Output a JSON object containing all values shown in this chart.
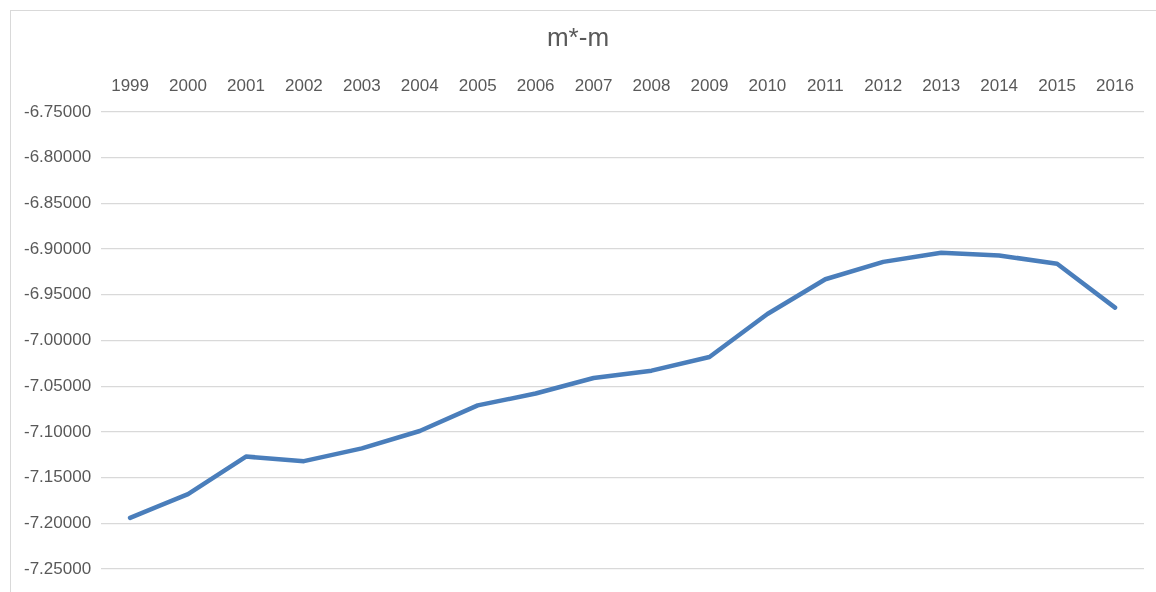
{
  "chart_data": {
    "type": "line",
    "title": "m*-m",
    "categories": [
      "1999",
      "2000",
      "2001",
      "2002",
      "2003",
      "2004",
      "2005",
      "2006",
      "2007",
      "2008",
      "2009",
      "2010",
      "2011",
      "2012",
      "2013",
      "2014",
      "2015",
      "2016"
    ],
    "series": [
      {
        "color": "#4a7ebb",
        "values": [
          -7.194,
          -7.168,
          -7.127,
          -7.132,
          -7.118,
          -7.099,
          -7.071,
          -7.058,
          -7.041,
          -7.033,
          -7.018,
          -6.971,
          -6.933,
          -6.914,
          -6.904,
          -6.907,
          -6.916,
          -6.964
        ]
      }
    ],
    "ylim": [
      -7.25,
      -6.75
    ],
    "yticks": [
      {
        "value": -7.25,
        "label": "-7.25000"
      },
      {
        "value": -7.2,
        "label": "-7.20000"
      },
      {
        "value": -7.15,
        "label": "-7.15000"
      },
      {
        "value": -7.1,
        "label": "-7.10000"
      },
      {
        "value": -7.05,
        "label": "-7.05000"
      },
      {
        "value": -7.0,
        "label": "-7.00000"
      },
      {
        "value": -6.95,
        "label": "-6.95000"
      },
      {
        "value": -6.9,
        "label": "-6.90000"
      },
      {
        "value": -6.85,
        "label": "-6.85000"
      },
      {
        "value": -6.8,
        "label": "-6.80000"
      },
      {
        "value": -6.75,
        "label": "-6.75000"
      }
    ],
    "grid": "y",
    "legend": false,
    "marker": "none",
    "line_style": "solid"
  }
}
